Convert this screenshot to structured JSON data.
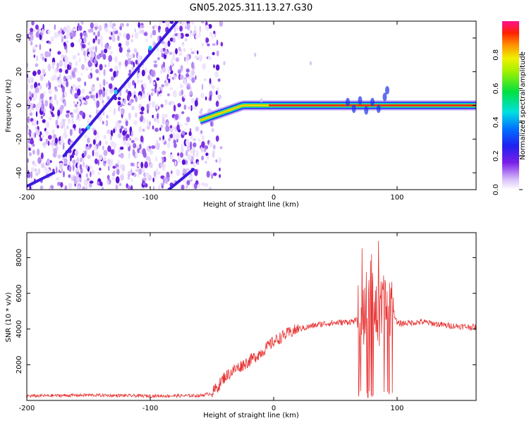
{
  "title": "GN05.2025.311.13.27.G30",
  "top_panel": {
    "xlabel": "Height of straight line (km)",
    "ylabel": "Frequency (Hz)",
    "x_ticks": [
      "-200",
      "-100",
      "0",
      "100"
    ],
    "y_ticks": [
      "40",
      "20",
      "0",
      "-20",
      "-40"
    ]
  },
  "colorbar": {
    "label": "Normalized spectral amplitude",
    "ticks": [
      "0.0",
      "0.2",
      "0.4",
      "0.6",
      "0.8"
    ]
  },
  "bottom_panel": {
    "xlabel": "Height of straight line (km)",
    "ylabel": "SNR (10 * v/v)",
    "x_ticks": [
      "-200",
      "-100",
      "0",
      "100"
    ],
    "y_ticks": [
      "8000",
      "6000",
      "4000",
      "2000"
    ]
  },
  "chart_data": [
    {
      "type": "heatmap",
      "title": "GN05.2025.311.13.27.G30",
      "xlabel": "Height of straight line (km)",
      "ylabel": "Frequency (Hz)",
      "xlim": [
        -200,
        164
      ],
      "ylim": [
        -50,
        50
      ],
      "colorbar_range": [
        0,
        1
      ],
      "features": [
        {
          "name": "noise-region",
          "x_range": [
            -200,
            -50
          ]
        },
        {
          "name": "diagonal-track",
          "from": [
            -170,
            -30
          ],
          "to": [
            -78,
            50
          ]
        },
        {
          "name": "diagonal-track-low",
          "from": [
            -200,
            -48
          ],
          "to": [
            -178,
            -40
          ]
        },
        {
          "name": "diagonal-track-right",
          "from": [
            -85,
            -50
          ],
          "to": [
            -65,
            -38
          ]
        },
        {
          "name": "zero-frequency-line",
          "from": [
            -60,
            -9
          ],
          "to": [
            164,
            0
          ]
        }
      ]
    },
    {
      "type": "line",
      "title": "",
      "xlabel": "Height of straight line (km)",
      "ylabel": "SNR (10 * v/v)",
      "xlim": [
        -200,
        164
      ],
      "ylim": [
        0,
        9400
      ],
      "series": [
        {
          "name": "SNR",
          "color": "#e83030",
          "x": [
            -200,
            -150,
            -100,
            -60,
            -50,
            -45,
            -40,
            -30,
            -20,
            -10,
            0,
            10,
            20,
            40,
            60,
            70,
            75,
            80,
            85,
            90,
            95,
            100,
            120,
            140,
            164
          ],
          "values": [
            250,
            300,
            250,
            270,
            400,
            800,
            1300,
            1800,
            2200,
            2700,
            3300,
            3700,
            4000,
            4300,
            4400,
            4500,
            5500,
            6000,
            4500,
            5000,
            5500,
            4300,
            4400,
            4200,
            4100
          ]
        }
      ]
    }
  ]
}
